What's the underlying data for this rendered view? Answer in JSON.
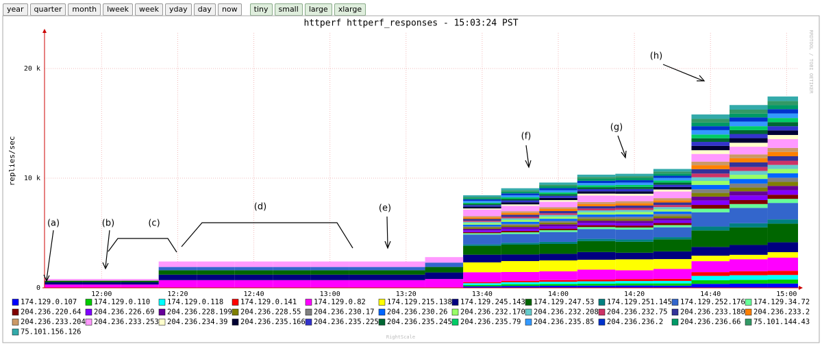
{
  "ui": {
    "range_buttons": [
      "year",
      "quarter",
      "month",
      "lweek",
      "week",
      "yday",
      "day",
      "now"
    ],
    "size_buttons": [
      "tiny",
      "small",
      "large",
      "xlarge"
    ]
  },
  "chart_data": {
    "type": "stacked-area",
    "title": "httperf httperf_responses - 15:03:24 PST",
    "y_label": "replies/sec",
    "side_text": "RRDTOOL / TOBI OETIKER",
    "footer": "RightScale",
    "annotations": [
      "(a)",
      "(b)",
      "(c)",
      "(d)",
      "(e)",
      "(f)",
      "(g)",
      "(h)"
    ],
    "x": [
      705,
      715,
      725,
      735,
      745,
      755,
      765,
      775,
      785,
      795,
      805,
      815,
      825,
      835,
      845,
      855,
      865,
      875,
      885,
      895
    ],
    "xlim": [
      705,
      903
    ],
    "xticks": [
      {
        "value": 720,
        "label": "12:00"
      },
      {
        "value": 740,
        "label": "12:20"
      },
      {
        "value": 760,
        "label": "12:40"
      },
      {
        "value": 780,
        "label": "13:00"
      },
      {
        "value": 800,
        "label": "13:20"
      },
      {
        "value": 820,
        "label": "13:40"
      },
      {
        "value": 840,
        "label": "14:00"
      },
      {
        "value": 860,
        "label": "14:20"
      },
      {
        "value": 880,
        "label": "14:40"
      },
      {
        "value": 900,
        "label": "15:00"
      }
    ],
    "ylim": [
      0,
      23250
    ],
    "yticks": [
      0,
      {
        "value": 10000,
        "label": "10 k"
      },
      {
        "value": 20000,
        "label": "20 k"
      }
    ],
    "grid": true,
    "series": [
      {
        "name": "174.129.0.107",
        "color": "#0000ff",
        "values": [
          0,
          0,
          0,
          0,
          0,
          0,
          0,
          0,
          0,
          0,
          0,
          140,
          170,
          190,
          200,
          210,
          200,
          360,
          380,
          390
        ]
      },
      {
        "name": "174.129.0.110",
        "color": "#00cc00",
        "values": [
          0,
          0,
          0,
          0,
          0,
          0,
          0,
          0,
          0,
          0,
          0,
          120,
          150,
          160,
          180,
          190,
          200,
          330,
          350,
          370
        ]
      },
      {
        "name": "174.129.0.118",
        "color": "#00ffff",
        "values": [
          0,
          0,
          0,
          0,
          0,
          0,
          0,
          0,
          0,
          0,
          0,
          160,
          190,
          200,
          210,
          220,
          230,
          400,
          420,
          410
        ]
      },
      {
        "name": "174.129.0.141",
        "color": "#ff0000",
        "values": [
          0,
          0,
          0,
          0,
          0,
          0,
          0,
          0,
          0,
          0,
          0,
          100,
          130,
          150,
          170,
          180,
          190,
          340,
          360,
          380
        ]
      },
      {
        "name": "174.129.0.82",
        "color": "#ff00ff",
        "values": [
          300,
          300,
          300,
          700,
          700,
          700,
          700,
          700,
          700,
          700,
          800,
          900,
          800,
          800,
          900,
          800,
          900,
          1000,
          1100,
          1200
        ]
      },
      {
        "name": "174.129.215.138",
        "color": "#ffff00",
        "values": [
          0,
          0,
          0,
          0,
          0,
          0,
          0,
          0,
          0,
          0,
          0,
          900,
          1000,
          1000,
          900,
          1000,
          900,
          500,
          400,
          500
        ]
      },
      {
        "name": "174.129.245.143",
        "color": "#000080",
        "values": [
          200,
          200,
          200,
          500,
          500,
          500,
          500,
          500,
          500,
          500,
          600,
          700,
          600,
          600,
          700,
          600,
          700,
          800,
          900,
          900
        ]
      },
      {
        "name": "174.129.247.53",
        "color": "#006600",
        "values": [
          150,
          150,
          150,
          400,
          400,
          400,
          400,
          400,
          400,
          400,
          500,
          800,
          900,
          900,
          1000,
          1000,
          1100,
          1500,
          1600,
          1700
        ]
      },
      {
        "name": "174.129.251.145",
        "color": "#008080",
        "values": [
          0,
          0,
          0,
          0,
          0,
          0,
          0,
          0,
          0,
          0,
          0,
          140,
          170,
          190,
          200,
          210,
          200,
          360,
          380,
          390
        ]
      },
      {
        "name": "174.129.252.176",
        "color": "#3366cc",
        "values": [
          0,
          0,
          0,
          300,
          300,
          300,
          300,
          300,
          300,
          300,
          400,
          900,
          800,
          900,
          900,
          900,
          900,
          1300,
          1400,
          1500
        ]
      },
      {
        "name": "174.129.34.72",
        "color": "#66ff99",
        "values": [
          0,
          0,
          0,
          0,
          0,
          0,
          0,
          0,
          0,
          0,
          0,
          120,
          150,
          160,
          180,
          190,
          200,
          330,
          350,
          370
        ]
      },
      {
        "name": "204.236.220.64",
        "color": "#800000",
        "values": [
          0,
          0,
          0,
          0,
          0,
          0,
          0,
          0,
          0,
          0,
          0,
          100,
          130,
          150,
          170,
          180,
          190,
          340,
          360,
          380
        ]
      },
      {
        "name": "204.236.226.69",
        "color": "#8000ff",
        "values": [
          0,
          0,
          0,
          0,
          0,
          0,
          0,
          0,
          0,
          0,
          0,
          160,
          190,
          200,
          210,
          220,
          230,
          400,
          420,
          410
        ]
      },
      {
        "name": "204.236.228.199",
        "color": "#660099",
        "values": [
          0,
          0,
          0,
          0,
          0,
          0,
          0,
          0,
          0,
          0,
          0,
          140,
          170,
          190,
          200,
          210,
          200,
          360,
          380,
          390
        ]
      },
      {
        "name": "204.236.228.55",
        "color": "#808000",
        "values": [
          0,
          0,
          0,
          0,
          0,
          0,
          0,
          0,
          0,
          0,
          0,
          120,
          150,
          160,
          180,
          190,
          200,
          330,
          350,
          370
        ]
      },
      {
        "name": "204.236.230.17",
        "color": "#808080",
        "values": [
          0,
          0,
          0,
          0,
          0,
          0,
          0,
          0,
          0,
          0,
          0,
          100,
          130,
          150,
          170,
          180,
          190,
          340,
          360,
          380
        ]
      },
      {
        "name": "204.236.230.26",
        "color": "#0066ff",
        "values": [
          0,
          0,
          0,
          0,
          0,
          0,
          0,
          0,
          0,
          0,
          0,
          160,
          190,
          200,
          210,
          220,
          230,
          400,
          420,
          410
        ]
      },
      {
        "name": "204.236.232.170",
        "color": "#99ff66",
        "values": [
          0,
          0,
          0,
          0,
          0,
          0,
          0,
          0,
          0,
          0,
          0,
          140,
          170,
          190,
          200,
          210,
          200,
          360,
          380,
          390
        ]
      },
      {
        "name": "204.236.232.208",
        "color": "#66cccc",
        "values": [
          0,
          0,
          0,
          0,
          0,
          0,
          0,
          0,
          0,
          0,
          0,
          120,
          150,
          160,
          180,
          190,
          200,
          330,
          350,
          370
        ]
      },
      {
        "name": "204.236.232.75",
        "color": "#cc3366",
        "values": [
          0,
          0,
          0,
          0,
          0,
          0,
          0,
          0,
          0,
          0,
          0,
          100,
          130,
          150,
          170,
          180,
          190,
          340,
          360,
          380
        ]
      },
      {
        "name": "204.236.233.180",
        "color": "#333399",
        "values": [
          0,
          0,
          0,
          0,
          0,
          0,
          0,
          0,
          0,
          0,
          0,
          160,
          190,
          200,
          210,
          220,
          230,
          400,
          420,
          410
        ]
      },
      {
        "name": "204.236.233.2",
        "color": "#ff8000",
        "values": [
          0,
          0,
          0,
          0,
          0,
          0,
          0,
          0,
          0,
          0,
          0,
          140,
          170,
          190,
          200,
          210,
          200,
          360,
          380,
          390
        ]
      },
      {
        "name": "204.236.233.204",
        "color": "#cc9966",
        "values": [
          0,
          0,
          0,
          0,
          0,
          0,
          0,
          0,
          0,
          0,
          0,
          120,
          150,
          160,
          180,
          190,
          200,
          330,
          350,
          370
        ]
      },
      {
        "name": "204.236.233.253",
        "color": "#ff99ff",
        "values": [
          150,
          150,
          150,
          500,
          500,
          500,
          500,
          500,
          500,
          500,
          500,
          600,
          500,
          500,
          600,
          500,
          600,
          700,
          700,
          800
        ]
      },
      {
        "name": "204.236.234.39",
        "color": "#ffffcc",
        "values": [
          0,
          0,
          0,
          0,
          0,
          0,
          0,
          0,
          0,
          0,
          0,
          100,
          130,
          150,
          170,
          180,
          190,
          340,
          360,
          380
        ]
      },
      {
        "name": "204.236.235.166",
        "color": "#000033",
        "values": [
          0,
          0,
          0,
          0,
          0,
          0,
          0,
          0,
          0,
          0,
          0,
          160,
          190,
          200,
          210,
          220,
          230,
          400,
          420,
          410
        ]
      },
      {
        "name": "204.236.235.225",
        "color": "#3333cc",
        "values": [
          0,
          0,
          0,
          0,
          0,
          0,
          0,
          0,
          0,
          0,
          0,
          140,
          170,
          190,
          200,
          210,
          200,
          360,
          380,
          390
        ]
      },
      {
        "name": "204.236.235.245",
        "color": "#006633",
        "values": [
          0,
          0,
          0,
          0,
          0,
          0,
          0,
          0,
          0,
          0,
          0,
          120,
          150,
          160,
          180,
          190,
          200,
          330,
          350,
          370
        ]
      },
      {
        "name": "204.236.235.79",
        "color": "#00cc66",
        "values": [
          0,
          0,
          0,
          0,
          0,
          0,
          0,
          0,
          0,
          0,
          0,
          100,
          130,
          150,
          170,
          180,
          190,
          340,
          360,
          380
        ]
      },
      {
        "name": "204.236.235.85",
        "color": "#3399ff",
        "values": [
          0,
          0,
          0,
          0,
          0,
          0,
          0,
          0,
          0,
          0,
          0,
          160,
          190,
          200,
          210,
          220,
          230,
          400,
          420,
          410
        ]
      },
      {
        "name": "204.236.236.2",
        "color": "#0033cc",
        "values": [
          0,
          0,
          0,
          0,
          0,
          0,
          0,
          0,
          0,
          0,
          0,
          140,
          170,
          190,
          200,
          210,
          200,
          360,
          380,
          390
        ]
      },
      {
        "name": "204.236.236.66",
        "color": "#009966",
        "values": [
          0,
          0,
          0,
          0,
          0,
          0,
          0,
          0,
          0,
          0,
          0,
          120,
          150,
          160,
          180,
          190,
          200,
          330,
          350,
          370
        ]
      },
      {
        "name": "75.101.144.43",
        "color": "#339966",
        "values": [
          0,
          0,
          0,
          0,
          0,
          0,
          0,
          0,
          0,
          0,
          0,
          100,
          130,
          150,
          170,
          180,
          190,
          340,
          360,
          380
        ]
      },
      {
        "name": "75.101.156.126",
        "color": "#33aaaa",
        "values": [
          0,
          0,
          0,
          0,
          0,
          0,
          0,
          0,
          0,
          0,
          0,
          160,
          190,
          200,
          210,
          220,
          230,
          400,
          420,
          410
        ]
      }
    ]
  }
}
